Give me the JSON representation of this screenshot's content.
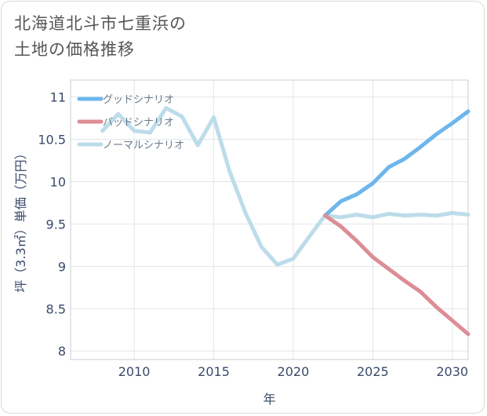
{
  "title": {
    "line1": "北海道北斗市七重浜の",
    "line2": "土地の価格推移"
  },
  "chart_data": {
    "type": "line",
    "title": "北海道北斗市七重浜の土地の価格推移",
    "xlabel": "年",
    "ylabel": "坪（3.3㎡）単価（万円）",
    "xlim": [
      2006,
      2031
    ],
    "ylim": [
      7.9,
      11.2
    ],
    "xticks": [
      2010,
      2015,
      2020,
      2025,
      2030
    ],
    "yticks": [
      8,
      8.5,
      9,
      9.5,
      10,
      10.5,
      11
    ],
    "grid": true,
    "legend": "top-left",
    "series": [
      {
        "name": "グッドシナリオ",
        "color": "#6db6ec",
        "x": [
          2022,
          2023,
          2024,
          2025,
          2026,
          2027,
          2028,
          2029,
          2030,
          2031
        ],
        "values": [
          9.6,
          9.77,
          9.85,
          9.98,
          10.17,
          10.27,
          10.41,
          10.56,
          10.69,
          10.83
        ]
      },
      {
        "name": "バッドシナリオ",
        "color": "#dd8d95",
        "x": [
          2022,
          2023,
          2024,
          2025,
          2026,
          2027,
          2028,
          2029,
          2030,
          2031
        ],
        "values": [
          9.6,
          9.47,
          9.3,
          9.11,
          8.97,
          8.83,
          8.7,
          8.52,
          8.36,
          8.2
        ]
      },
      {
        "name": "ノーマルシナリオ",
        "color": "#bcdcea",
        "x": [
          2008,
          2009,
          2010,
          2011,
          2012,
          2013,
          2014,
          2015,
          2016,
          2017,
          2018,
          2019,
          2020,
          2021,
          2022,
          2023,
          2024,
          2025,
          2026,
          2027,
          2028,
          2029,
          2030,
          2031
        ],
        "values": [
          10.6,
          10.8,
          10.6,
          10.58,
          10.87,
          10.77,
          10.43,
          10.76,
          10.12,
          9.63,
          9.23,
          9.02,
          9.09,
          9.35,
          9.6,
          9.58,
          9.61,
          9.58,
          9.62,
          9.6,
          9.61,
          9.6,
          9.63,
          9.61
        ]
      }
    ]
  }
}
